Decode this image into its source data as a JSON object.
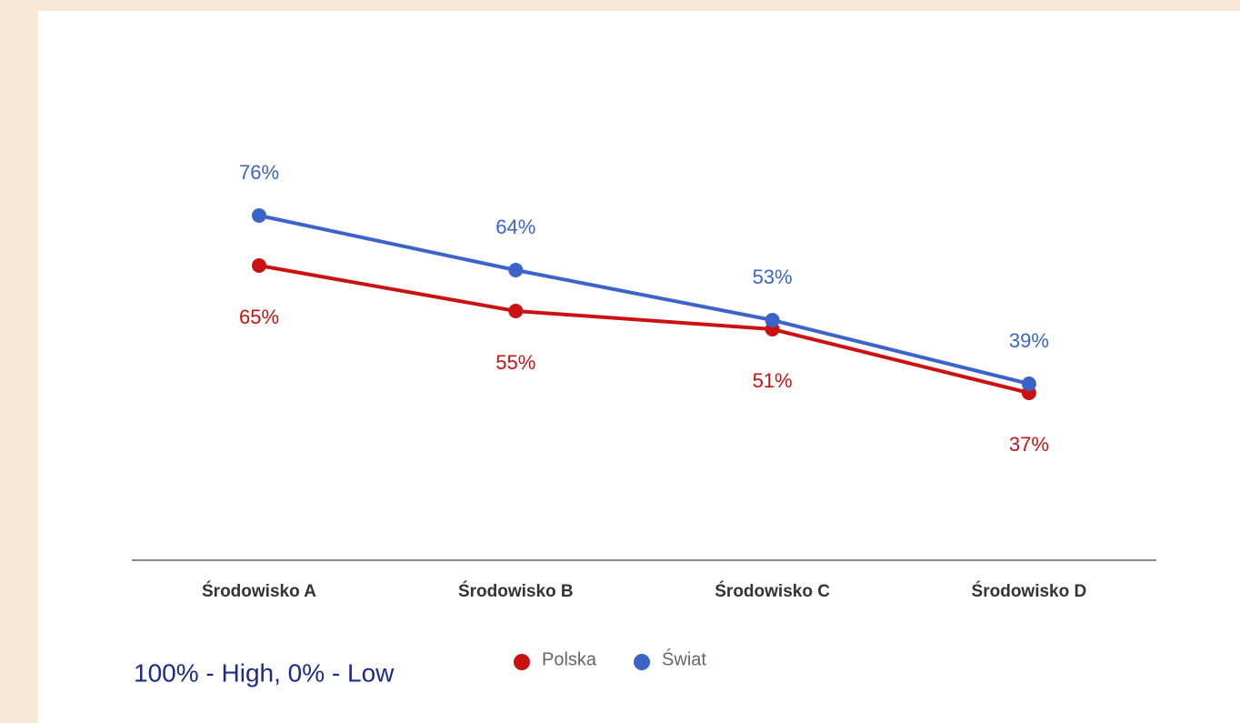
{
  "chart_data": {
    "type": "line",
    "categories": [
      "Środowisko A",
      "Środowisko B",
      "Środowisko C",
      "Środowisko D"
    ],
    "series": [
      {
        "name": "Polska",
        "color": "#cc1111",
        "values": [
          65,
          55,
          51,
          37
        ],
        "value_labels": [
          "65%",
          "55%",
          "51%",
          "37%"
        ]
      },
      {
        "name": "Świat",
        "color": "#3b63c9",
        "values": [
          76,
          64,
          53,
          39
        ],
        "value_labels": [
          "76%",
          "64%",
          "53%",
          "39%"
        ]
      }
    ],
    "ylim": [
      0,
      100
    ],
    "annotation": "100% - High, 0% - Low"
  }
}
